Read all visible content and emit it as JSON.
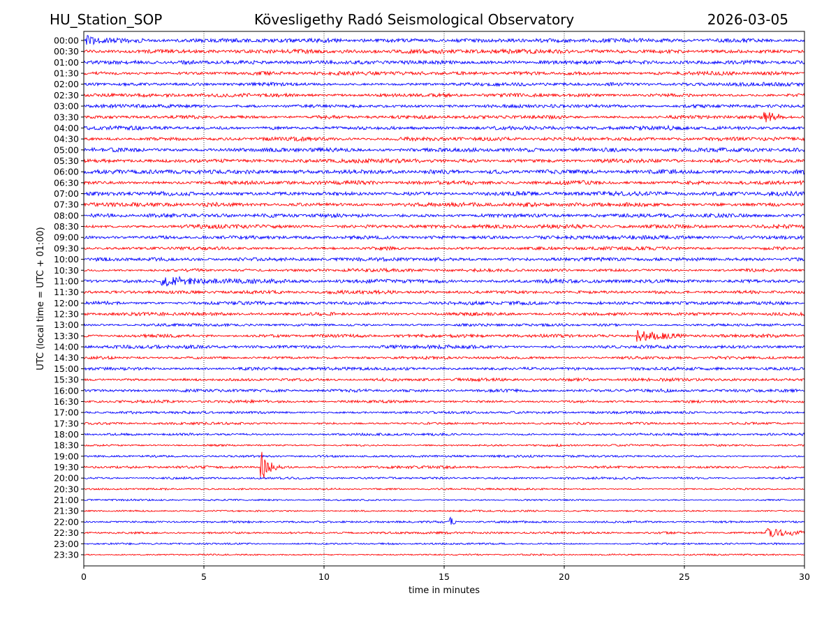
{
  "header": {
    "station": "HU_Station_SOP",
    "observatory": "Kövesligethy Radó Seismological Observatory",
    "date": "2026-03-05"
  },
  "chart_data": {
    "type": "line",
    "title": "Kövesligethy Radó Seismological Observatory",
    "xlabel": "time in minutes",
    "ylabel": "UTC (local time = UTC + 01:00)",
    "xlim": [
      0,
      30
    ],
    "x_ticks": [
      0,
      5,
      10,
      15,
      20,
      25,
      30
    ],
    "vertical_gridlines_minutes": [
      5,
      10,
      15,
      20,
      25
    ],
    "grid_style": "dotted vertical",
    "row_labels": [
      "00:00",
      "00:30",
      "01:00",
      "01:30",
      "02:00",
      "02:30",
      "03:00",
      "03:30",
      "04:00",
      "04:30",
      "05:00",
      "05:30",
      "06:00",
      "06:30",
      "07:00",
      "07:30",
      "08:00",
      "08:30",
      "09:00",
      "09:30",
      "10:00",
      "10:30",
      "11:00",
      "11:30",
      "12:00",
      "12:30",
      "13:00",
      "13:30",
      "14:00",
      "14:30",
      "15:00",
      "15:30",
      "16:00",
      "16:30",
      "17:00",
      "17:30",
      "18:00",
      "18:30",
      "19:00",
      "19:30",
      "20:00",
      "20:30",
      "21:00",
      "21:30",
      "22:00",
      "22:30",
      "23:00",
      "23:30"
    ],
    "series_colors": [
      "#0000ff",
      "#ff0000"
    ],
    "color_cycle_note": "alternating rows: blue, red",
    "noise_amplitude_by_row": [
      4.5,
      4.5,
      4.2,
      4.2,
      3.8,
      3.8,
      3.6,
      3.8,
      4.5,
      4.3,
      4.5,
      4.5,
      4.8,
      4.8,
      5.0,
      4.8,
      4.5,
      4.3,
      4.0,
      3.8,
      4.0,
      3.6,
      4.5,
      3.6,
      4.0,
      3.6,
      3.0,
      3.8,
      3.8,
      3.3,
      3.4,
      3.4,
      3.4,
      3.0,
      3.0,
      2.8,
      2.6,
      2.4,
      2.4,
      2.8,
      2.4,
      2.2,
      2.0,
      2.0,
      2.2,
      2.5,
      2.0,
      1.8
    ],
    "events": [
      {
        "row": "19:30",
        "start_min": 7.35,
        "end_min": 9.6,
        "peak_amplitude": 26,
        "decay": 3.2
      },
      {
        "row": "11:00",
        "start_min": 3.2,
        "end_min": 8.6,
        "peak_amplitude": 8,
        "decay": 0.8
      },
      {
        "row": "13:30",
        "start_min": 23.0,
        "end_min": 25.2,
        "peak_amplitude": 9,
        "decay": 1.2
      },
      {
        "row": "22:00",
        "start_min": 15.2,
        "end_min": 15.6,
        "peak_amplitude": 8,
        "decay": 6
      },
      {
        "row": "00:00",
        "start_min": 0.1,
        "end_min": 2.4,
        "peak_amplitude": 7,
        "decay": 1.5
      },
      {
        "row": "03:30",
        "start_min": 28.3,
        "end_min": 29.2,
        "peak_amplitude": 7,
        "decay": 2
      },
      {
        "row": "22:30",
        "start_min": 28.4,
        "end_min": 30.0,
        "peak_amplitude": 6,
        "decay": 1
      }
    ]
  }
}
